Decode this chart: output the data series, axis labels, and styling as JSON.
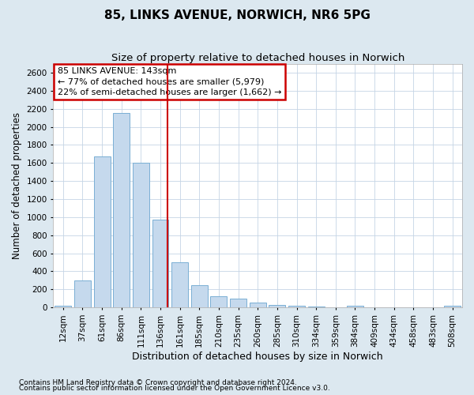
{
  "title": "85, LINKS AVENUE, NORWICH, NR6 5PG",
  "subtitle": "Size of property relative to detached houses in Norwich",
  "xlabel": "Distribution of detached houses by size in Norwich",
  "ylabel": "Number of detached properties",
  "categories": [
    "12sqm",
    "37sqm",
    "61sqm",
    "86sqm",
    "111sqm",
    "136sqm",
    "161sqm",
    "185sqm",
    "210sqm",
    "235sqm",
    "260sqm",
    "285sqm",
    "310sqm",
    "334sqm",
    "359sqm",
    "384sqm",
    "409sqm",
    "434sqm",
    "458sqm",
    "483sqm",
    "508sqm"
  ],
  "values": [
    20,
    300,
    1670,
    2150,
    1600,
    970,
    500,
    245,
    120,
    95,
    50,
    30,
    20,
    10,
    5,
    20,
    5,
    5,
    5,
    5,
    20
  ],
  "bar_color": "#c5d9ed",
  "bar_edgecolor": "#7aafd4",
  "vline_x": 5.35,
  "vline_color": "#cc0000",
  "annotation_text": "85 LINKS AVENUE: 143sqm\n← 77% of detached houses are smaller (5,979)\n22% of semi-detached houses are larger (1,662) →",
  "annotation_box_facecolor": "#ffffff",
  "annotation_box_edgecolor": "#cc0000",
  "ylim": [
    0,
    2700
  ],
  "yticks": [
    0,
    200,
    400,
    600,
    800,
    1000,
    1200,
    1400,
    1600,
    1800,
    2000,
    2200,
    2400,
    2600
  ],
  "footer1": "Contains HM Land Registry data © Crown copyright and database right 2024.",
  "footer2": "Contains public sector information licensed under the Open Government Licence v3.0.",
  "title_fontsize": 11,
  "subtitle_fontsize": 9.5,
  "ylabel_fontsize": 8.5,
  "xlabel_fontsize": 9,
  "tick_fontsize": 7.5,
  "annotation_fontsize": 8,
  "footer_fontsize": 6.5,
  "fig_facecolor": "#dce8f0",
  "plot_facecolor": "#ffffff",
  "grid_color": "#c5d5e5"
}
